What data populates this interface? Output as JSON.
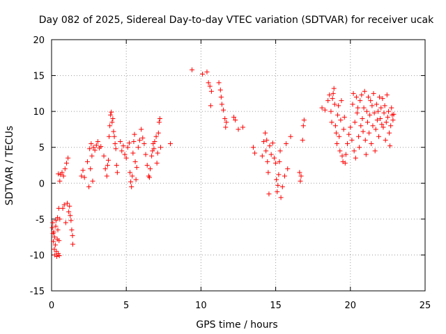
{
  "chart_data": {
    "type": "scatter",
    "title": "Day 082 of 2025, Sidereal Day-to-day VTEC variation (SDTVAR) for receiver ucak",
    "xlabel": "GPS time / hours",
    "ylabel": "SDTVAR / TECUs",
    "xlim": [
      0,
      25
    ],
    "ylim": [
      -15,
      20
    ],
    "xticks": [
      0,
      5,
      10,
      15,
      20,
      25
    ],
    "yticks": [
      -15,
      -10,
      -5,
      0,
      5,
      10,
      15,
      20
    ],
    "xtick_labels": [
      "0",
      "5",
      "10",
      "15",
      "20",
      "25"
    ],
    "ytick_labels": [
      "-15",
      "-10",
      "-5",
      "0",
      "5",
      "10",
      "15",
      "20"
    ],
    "grid": true,
    "marker": "+",
    "color": "#ff0000",
    "series": [
      {
        "name": "SDTVAR",
        "points": [
          [
            0.05,
            -6.2
          ],
          [
            0.08,
            -5.5
          ],
          [
            0.1,
            -7.0
          ],
          [
            0.12,
            -8.1
          ],
          [
            0.15,
            -6.8
          ],
          [
            0.18,
            -9.2
          ],
          [
            0.2,
            -7.5
          ],
          [
            0.22,
            -10.0
          ],
          [
            0.25,
            -8.6
          ],
          [
            0.28,
            -6.0
          ],
          [
            0.3,
            -5.2
          ],
          [
            0.32,
            -9.5
          ],
          [
            0.35,
            -10.2
          ],
          [
            0.38,
            -7.8
          ],
          [
            0.4,
            -4.8
          ],
          [
            0.42,
            -6.5
          ],
          [
            0.45,
            -9.8
          ],
          [
            0.48,
            -3.5
          ],
          [
            0.5,
            -8.0
          ],
          [
            0.52,
            -10.1
          ],
          [
            0.55,
            -5.0
          ],
          [
            0.45,
            1.3
          ],
          [
            0.55,
            0.3
          ],
          [
            0.6,
            1.2
          ],
          [
            0.7,
            1.5
          ],
          [
            0.75,
            -3.5
          ],
          [
            0.8,
            1.0
          ],
          [
            0.85,
            -3.0
          ],
          [
            0.9,
            2.0
          ],
          [
            0.95,
            -5.5
          ],
          [
            1.0,
            2.8
          ],
          [
            1.05,
            -2.8
          ],
          [
            1.1,
            3.5
          ],
          [
            1.15,
            -4.0
          ],
          [
            1.2,
            -3.2
          ],
          [
            1.25,
            -4.5
          ],
          [
            1.3,
            -5.2
          ],
          [
            1.35,
            -6.5
          ],
          [
            1.4,
            -7.3
          ],
          [
            1.42,
            -8.5
          ],
          [
            2.0,
            1.0
          ],
          [
            2.1,
            1.8
          ],
          [
            2.2,
            0.8
          ],
          [
            2.4,
            3.0
          ],
          [
            2.5,
            -0.5
          ],
          [
            2.55,
            4.8
          ],
          [
            2.6,
            2.0
          ],
          [
            2.65,
            5.5
          ],
          [
            2.7,
            3.8
          ],
          [
            2.75,
            0.3
          ],
          [
            2.8,
            5.0
          ],
          [
            2.9,
            4.6
          ],
          [
            3.0,
            5.3
          ],
          [
            3.1,
            5.8
          ],
          [
            3.2,
            4.9
          ],
          [
            3.3,
            5.1
          ],
          [
            3.5,
            3.8
          ],
          [
            3.6,
            2.0
          ],
          [
            3.7,
            1.0
          ],
          [
            3.75,
            2.5
          ],
          [
            3.8,
            3.2
          ],
          [
            3.85,
            6.5
          ],
          [
            3.9,
            8.0
          ],
          [
            3.95,
            9.5
          ],
          [
            4.0,
            9.9
          ],
          [
            4.05,
            8.5
          ],
          [
            4.1,
            9.0
          ],
          [
            4.15,
            7.2
          ],
          [
            4.2,
            6.5
          ],
          [
            4.25,
            5.5
          ],
          [
            4.3,
            4.8
          ],
          [
            4.35,
            2.5
          ],
          [
            4.4,
            1.5
          ],
          [
            4.6,
            5.8
          ],
          [
            4.7,
            4.5
          ],
          [
            4.8,
            5.2
          ],
          [
            4.9,
            4.0
          ],
          [
            5.0,
            3.5
          ],
          [
            5.1,
            5.0
          ],
          [
            5.2,
            5.6
          ],
          [
            5.25,
            1.5
          ],
          [
            5.3,
            0.2
          ],
          [
            5.35,
            -0.5
          ],
          [
            5.4,
            1.0
          ],
          [
            5.45,
            4.2
          ],
          [
            5.5,
            5.8
          ],
          [
            5.55,
            6.8
          ],
          [
            5.6,
            3.0
          ],
          [
            5.65,
            0.5
          ],
          [
            5.7,
            2.2
          ],
          [
            5.8,
            5.0
          ],
          [
            5.9,
            6.0
          ],
          [
            6.0,
            7.5
          ],
          [
            6.1,
            6.3
          ],
          [
            6.2,
            5.5
          ],
          [
            6.3,
            4.0
          ],
          [
            6.4,
            2.5
          ],
          [
            6.5,
            1.0
          ],
          [
            6.55,
            0.8
          ],
          [
            6.6,
            2.0
          ],
          [
            6.7,
            3.8
          ],
          [
            6.75,
            4.5
          ],
          [
            6.8,
            5.5
          ],
          [
            6.85,
            4.8
          ],
          [
            6.9,
            5.8
          ],
          [
            7.0,
            6.5
          ],
          [
            7.05,
            2.8
          ],
          [
            7.1,
            4.2
          ],
          [
            7.15,
            7.0
          ],
          [
            7.2,
            8.5
          ],
          [
            7.25,
            9.0
          ],
          [
            7.3,
            5.0
          ],
          [
            7.95,
            5.5
          ],
          [
            9.4,
            15.8
          ],
          [
            10.1,
            15.2
          ],
          [
            10.4,
            15.5
          ],
          [
            10.5,
            14.0
          ],
          [
            10.6,
            13.5
          ],
          [
            10.65,
            10.8
          ],
          [
            10.7,
            12.8
          ],
          [
            11.2,
            14.0
          ],
          [
            11.3,
            13.0
          ],
          [
            11.35,
            12.0
          ],
          [
            11.4,
            11.0
          ],
          [
            11.5,
            10.2
          ],
          [
            11.6,
            9.0
          ],
          [
            11.65,
            7.8
          ],
          [
            11.7,
            8.5
          ],
          [
            12.2,
            9.2
          ],
          [
            12.3,
            8.8
          ],
          [
            12.5,
            7.5
          ],
          [
            12.8,
            7.8
          ],
          [
            13.5,
            5.0
          ],
          [
            13.6,
            4.2
          ],
          [
            14.1,
            3.8
          ],
          [
            14.2,
            5.8
          ],
          [
            14.3,
            7.0
          ],
          [
            14.35,
            4.5
          ],
          [
            14.4,
            6.0
          ],
          [
            14.45,
            3.0
          ],
          [
            14.5,
            1.5
          ],
          [
            14.55,
            -1.5
          ],
          [
            14.6,
            5.2
          ],
          [
            14.7,
            4.0
          ],
          [
            14.8,
            5.6
          ],
          [
            14.9,
            3.5
          ],
          [
            15.0,
            2.8
          ],
          [
            15.05,
            0.5
          ],
          [
            15.1,
            -1.2
          ],
          [
            15.15,
            -0.3
          ],
          [
            15.2,
            1.2
          ],
          [
            15.25,
            3.0
          ],
          [
            15.3,
            4.5
          ],
          [
            15.35,
            -2.0
          ],
          [
            15.45,
            -0.5
          ],
          [
            15.6,
            1.0
          ],
          [
            15.7,
            5.5
          ],
          [
            15.8,
            2.0
          ],
          [
            16.0,
            6.5
          ],
          [
            16.6,
            1.5
          ],
          [
            16.65,
            0.3
          ],
          [
            16.7,
            1.0
          ],
          [
            16.8,
            6.0
          ],
          [
            16.85,
            8.0
          ],
          [
            16.9,
            8.8
          ],
          [
            18.1,
            10.5
          ],
          [
            18.3,
            10.2
          ],
          [
            18.5,
            11.5
          ],
          [
            18.6,
            12.3
          ],
          [
            18.7,
            10.0
          ],
          [
            18.75,
            8.5
          ],
          [
            18.8,
            11.8
          ],
          [
            18.85,
            12.5
          ],
          [
            18.9,
            13.2
          ],
          [
            18.95,
            11.0
          ],
          [
            19.0,
            8.0
          ],
          [
            19.05,
            7.0
          ],
          [
            19.1,
            5.5
          ],
          [
            19.15,
            9.5
          ],
          [
            19.2,
            10.8
          ],
          [
            19.25,
            6.5
          ],
          [
            19.3,
            4.5
          ],
          [
            19.35,
            8.8
          ],
          [
            19.4,
            11.5
          ],
          [
            19.45,
            3.8
          ],
          [
            19.5,
            3.0
          ],
          [
            19.55,
            7.5
          ],
          [
            19.6,
            9.2
          ],
          [
            19.65,
            2.8
          ],
          [
            19.7,
            4.0
          ],
          [
            19.8,
            5.5
          ],
          [
            19.9,
            6.8
          ],
          [
            20.0,
            7.8
          ],
          [
            20.1,
            6.0
          ],
          [
            20.15,
            11.0
          ],
          [
            20.2,
            12.5
          ],
          [
            20.25,
            4.5
          ],
          [
            20.3,
            8.5
          ],
          [
            20.35,
            3.5
          ],
          [
            20.4,
            12.0
          ],
          [
            20.45,
            9.8
          ],
          [
            20.5,
            10.5
          ],
          [
            20.55,
            6.5
          ],
          [
            20.6,
            5.0
          ],
          [
            20.65,
            11.5
          ],
          [
            20.7,
            8.0
          ],
          [
            20.75,
            12.3
          ],
          [
            20.8,
            9.0
          ],
          [
            20.85,
            7.2
          ],
          [
            20.9,
            10.5
          ],
          [
            20.95,
            12.8
          ],
          [
            21.0,
            6.0
          ],
          [
            21.05,
            4.0
          ],
          [
            21.1,
            10.0
          ],
          [
            21.15,
            8.5
          ],
          [
            21.2,
            12.0
          ],
          [
            21.25,
            7.0
          ],
          [
            21.3,
            9.5
          ],
          [
            21.35,
            11.5
          ],
          [
            21.4,
            5.5
          ],
          [
            21.45,
            10.8
          ],
          [
            21.5,
            8.0
          ],
          [
            21.55,
            12.5
          ],
          [
            21.6,
            9.8
          ],
          [
            21.65,
            4.5
          ],
          [
            21.7,
            7.5
          ],
          [
            21.75,
            11.0
          ],
          [
            21.8,
            8.8
          ],
          [
            21.85,
            10.0
          ],
          [
            21.9,
            6.5
          ],
          [
            21.95,
            12.0
          ],
          [
            22.0,
            9.0
          ],
          [
            22.05,
            10.5
          ],
          [
            22.1,
            8.2
          ],
          [
            22.15,
            11.8
          ],
          [
            22.2,
            7.8
          ],
          [
            22.25,
            9.8
          ],
          [
            22.3,
            10.8
          ],
          [
            22.35,
            6.0
          ],
          [
            22.4,
            8.5
          ],
          [
            22.45,
            12.3
          ],
          [
            22.5,
            9.2
          ],
          [
            22.55,
            10.0
          ],
          [
            22.6,
            7.0
          ],
          [
            22.65,
            5.2
          ],
          [
            22.7,
            8.0
          ],
          [
            22.75,
            10.5
          ],
          [
            22.8,
            9.5
          ],
          [
            22.85,
            8.8
          ],
          [
            22.9,
            9.6
          ]
        ]
      }
    ]
  }
}
